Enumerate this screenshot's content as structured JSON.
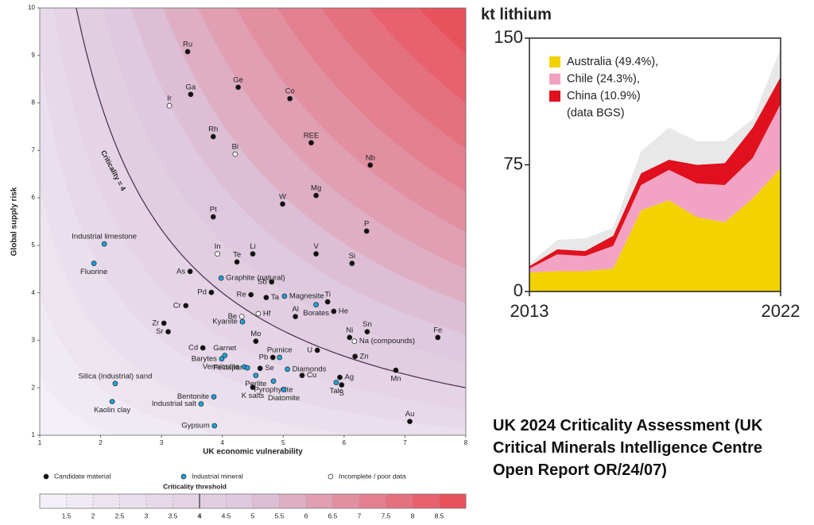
{
  "chart_data": [
    {
      "type": "scatter",
      "xlabel": "UK economic vulnerability",
      "ylabel": "Global supply risk",
      "xlim": [
        1,
        8
      ],
      "xticks": [
        1,
        2,
        3,
        4,
        5,
        6,
        7,
        8
      ],
      "ylim": [
        1,
        10
      ],
      "yticks": [
        1,
        2,
        3,
        4,
        5,
        6,
        7,
        8,
        9,
        10
      ],
      "threshold_label": "Criticality = 4",
      "series": [
        {
          "name": "Candidate material",
          "color": "#111111",
          "labels": [
            "Ru",
            "Ga",
            "Ge",
            "Co",
            "Rh",
            "REE",
            "Nb",
            "W",
            "Mg",
            "Pt",
            "P",
            "Te",
            "Li",
            "V",
            "Si",
            "As",
            "Sb",
            "Pd",
            "Re",
            "Ta",
            "Ti",
            "Cr",
            "Al",
            "He",
            "Zr",
            "Sr",
            "Ni",
            "Sn",
            "Fe",
            "Mo",
            "Cd",
            "U",
            "Zn",
            "Pb",
            "Se",
            "Cu",
            "Ag",
            "S",
            "Mn",
            "K salts",
            "Au"
          ],
          "x": [
            3.43,
            3.48,
            4.26,
            5.11,
            3.85,
            5.46,
            6.43,
            4.99,
            5.54,
            3.85,
            6.37,
            4.24,
            4.5,
            5.54,
            6.13,
            3.47,
            4.81,
            3.82,
            4.47,
            4.72,
            5.73,
            3.4,
            5.2,
            5.83,
            3.04,
            3.11,
            6.09,
            6.38,
            7.54,
            4.55,
            3.68,
            5.56,
            6.18,
            4.83,
            4.62,
            5.31,
            5.93,
            5.96,
            6.85,
            4.5,
            7.08
          ],
          "values": [
            9.08,
            8.18,
            8.33,
            8.09,
            7.29,
            7.16,
            6.69,
            5.87,
            6.05,
            5.6,
            5.3,
            4.65,
            4.82,
            4.82,
            4.62,
            4.45,
            4.23,
            4.01,
            3.96,
            3.9,
            3.81,
            3.73,
            3.5,
            3.61,
            3.36,
            3.18,
            3.06,
            3.18,
            3.06,
            2.98,
            2.84,
            2.79,
            2.66,
            2.64,
            2.41,
            2.26,
            2.22,
            2.06,
            2.37,
            2.01,
            1.29
          ]
        },
        {
          "name": "Industrial mineral",
          "color": "#1ca3dc",
          "labels": [
            "Industrial limestone",
            "Fluorine",
            "Graphite (natural)",
            "Magnesite",
            "Borates",
            "Kyanite",
            "Garnet",
            "Barytes",
            "Pumice",
            "Vermiculite",
            "Feldspar",
            "Diamonds",
            "Perlite",
            "Silica (industrial) sand",
            "Talc",
            "Pyrophyllite",
            "Diatomite",
            "Bentonite",
            "Kaolin clay",
            "Industrial salt",
            "Gypsum"
          ],
          "x": [
            2.06,
            1.89,
            3.98,
            5.02,
            5.54,
            4.33,
            4.04,
            3.99,
            4.94,
            4.36,
            4.41,
            5.07,
            4.55,
            2.24,
            5.87,
            4.84,
            5.01,
            3.86,
            2.19,
            3.65,
            3.87
          ],
          "values": [
            5.03,
            4.62,
            4.31,
            3.93,
            3.75,
            3.39,
            2.68,
            2.61,
            2.64,
            2.44,
            2.42,
            2.39,
            2.26,
            2.09,
            2.11,
            2.14,
            1.96,
            1.81,
            1.71,
            1.66,
            1.2
          ]
        },
        {
          "name": "Incomplete / poor data",
          "color": "#ffffff",
          "labels": [
            "Ir",
            "Bi",
            "In",
            "Hf",
            "Be",
            "Na (compounds)"
          ],
          "x": [
            3.13,
            4.21,
            3.92,
            4.59,
            4.32,
            6.17
          ],
          "values": [
            7.94,
            6.92,
            4.82,
            3.56,
            3.5,
            2.98
          ]
        }
      ],
      "colorbar": {
        "title": "Criticality threshold",
        "lim": [
          1,
          9
        ],
        "ticks": [
          1.5,
          2,
          2.5,
          3,
          3.5,
          4,
          4.5,
          5,
          5.5,
          6,
          6.5,
          7,
          7.5,
          8,
          8.5
        ],
        "threshold": 4,
        "colormap": [
          "#f4f2f9",
          "#dcc6dc",
          "#e94a55"
        ]
      }
    },
    {
      "type": "area",
      "stacked": true,
      "title": "kt lithium",
      "note": "(data BGS)",
      "x": [
        2013,
        2014,
        2015,
        2016,
        2017,
        2018,
        2019,
        2020,
        2021,
        2022
      ],
      "xlim": [
        2013,
        2022
      ],
      "xticks": [
        2013,
        2022
      ],
      "ylim": [
        0,
        150
      ],
      "yticks": [
        0,
        75,
        150
      ],
      "series": [
        {
          "name": "Australia (49.4%),",
          "color": "#f2d200",
          "values": [
            11.3,
            12,
            12,
            13.6,
            48,
            54,
            44,
            41,
            55,
            73
          ]
        },
        {
          "name": "Chile (24.3%),",
          "color": "#f2a3c4",
          "values": [
            2.3,
            10,
            9,
            13.4,
            15,
            18,
            20,
            22,
            24,
            38
          ]
        },
        {
          "name": "China (10.9%)",
          "color": "#e0101e",
          "values": [
            1.4,
            3,
            3,
            6,
            7,
            6,
            11,
            13,
            18,
            16
          ]
        },
        {
          "color": "#e8e8e8",
          "values": [
            1.5,
            5.5,
            7.5,
            4.6,
            13,
            19,
            14,
            13,
            5,
            17
          ]
        }
      ]
    }
  ],
  "caption": "UK 2024 Criticality Assessment (UK Critical Minerals Intelligence Centre Open Report OR/24/07)"
}
